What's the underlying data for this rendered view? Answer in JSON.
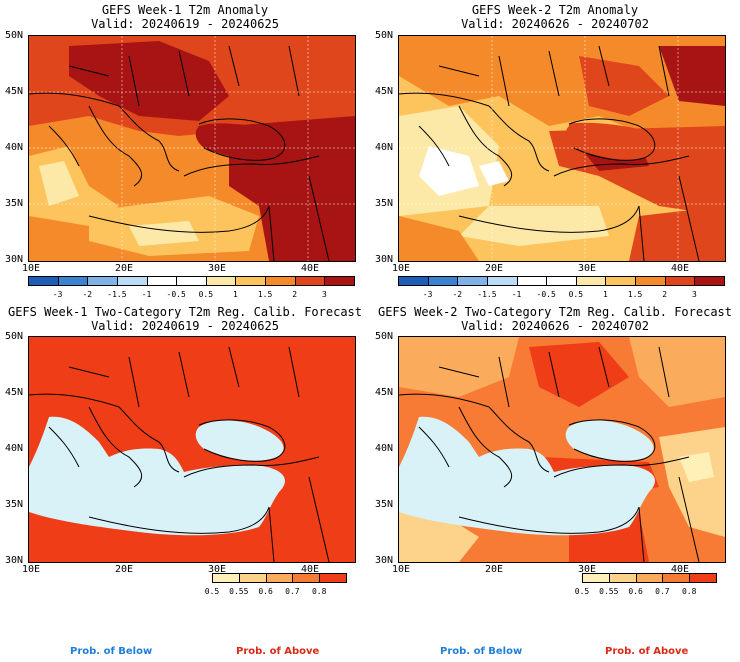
{
  "panels": {
    "tl": {
      "title": "GEFS Week-1 T2m Anomaly",
      "valid": "Valid: 20240619 - 20240625"
    },
    "tr": {
      "title": "GEFS Week-2 T2m Anomaly",
      "valid": "Valid: 20240626 - 20240702"
    },
    "bl": {
      "title": "GEFS Week-1 Two-Category T2m Reg. Calib. Forecast",
      "valid": "Valid: 20240619 - 20240625"
    },
    "br": {
      "title": "GEFS Week-2 Two-Category T2m Reg. Calib. Forecast",
      "valid": "Valid: 20240626 - 20240702"
    }
  },
  "axes": {
    "lat_labels": [
      "50N",
      "45N",
      "40N",
      "35N",
      "30N"
    ],
    "lon_labels": [
      "10E",
      "20E",
      "30E",
      "40E"
    ]
  },
  "anomaly_colorbar": {
    "colors": [
      "#1d5fb6",
      "#3b82d0",
      "#7fb2e6",
      "#bcdcf5",
      "#ffffff",
      "#ffffff",
      "#fde9a7",
      "#fdc35c",
      "#f58a2a",
      "#e0461c",
      "#a81414"
    ],
    "ticks": [
      "-3",
      "-2",
      "-1.5",
      "-1",
      "-0.5",
      "0.5",
      "1",
      "1.5",
      "2",
      "3"
    ]
  },
  "prob_colorbar": {
    "colors": [
      "#fff0b8",
      "#fdd28a",
      "#fbab5c",
      "#f77a35",
      "#ee3d17"
    ],
    "ticks": [
      "0.5",
      "0.55",
      "0.6",
      "0.7",
      "0.8"
    ]
  },
  "legend": {
    "below": "Prob. of Below",
    "above": "Prob. of Above",
    "below_color": "#1f7fd8",
    "above_color": "#d92a14"
  },
  "palette": {
    "sea": "#d8f2f8",
    "coast": "#000000",
    "grid": "#bfbfbf"
  }
}
